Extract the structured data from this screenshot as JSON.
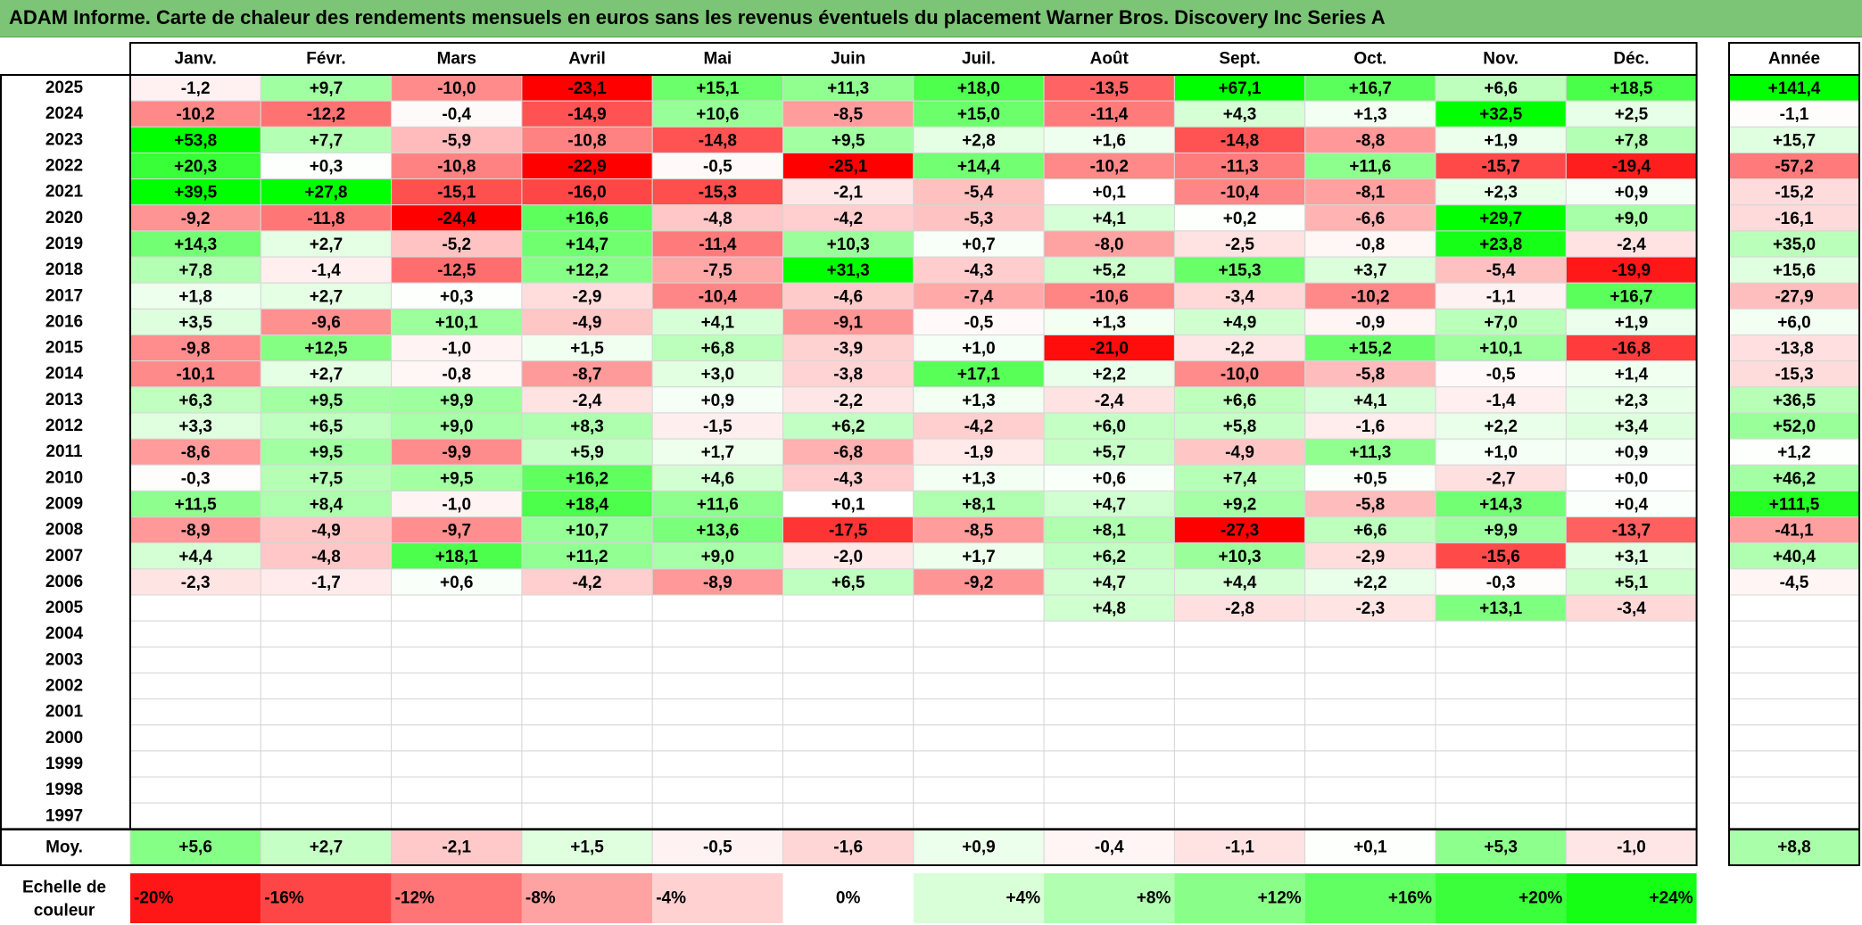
{
  "title": "ADAM Informe. Carte de chaleur des rendements mensuels en euros sans les revenus éventuels du placement Warner Bros. Discovery Inc Series A",
  "chart_data": {
    "type": "heatmap",
    "months": [
      "Janv.",
      "Févr.",
      "Mars",
      "Avril",
      "Mai",
      "Juin",
      "Juil.",
      "Août",
      "Sept.",
      "Oct.",
      "Nov.",
      "Déc."
    ],
    "year_column_label": "Année",
    "rows": [
      {
        "year": "2025",
        "values": [
          "-1,2",
          "+9,7",
          "-10,0",
          "-23,1",
          "+15,1",
          "+11,3",
          "+18,0",
          "-13,5",
          "+67,1",
          "+16,7",
          "+6,6",
          "+18,5"
        ],
        "annual": "+141,4"
      },
      {
        "year": "2024",
        "values": [
          "-10,2",
          "-12,2",
          "-0,4",
          "-14,9",
          "+10,6",
          "-8,5",
          "+15,0",
          "-11,4",
          "+4,3",
          "+1,3",
          "+32,5",
          "+2,5"
        ],
        "annual": "-1,1"
      },
      {
        "year": "2023",
        "values": [
          "+53,8",
          "+7,7",
          "-5,9",
          "-10,8",
          "-14,8",
          "+9,5",
          "+2,8",
          "+1,6",
          "-14,8",
          "-8,8",
          "+1,9",
          "+7,8"
        ],
        "annual": "+15,7"
      },
      {
        "year": "2022",
        "values": [
          "+20,3",
          "+0,3",
          "-10,8",
          "-22,9",
          "-0,5",
          "-25,1",
          "+14,4",
          "-10,2",
          "-11,3",
          "+11,6",
          "-15,7",
          "-19,4"
        ],
        "annual": "-57,2"
      },
      {
        "year": "2021",
        "values": [
          "+39,5",
          "+27,8",
          "-15,1",
          "-16,0",
          "-15,3",
          "-2,1",
          "-5,4",
          "+0,1",
          "-10,4",
          "-8,1",
          "+2,3",
          "+0,9"
        ],
        "annual": "-15,2"
      },
      {
        "year": "2020",
        "values": [
          "-9,2",
          "-11,8",
          "-24,4",
          "+16,6",
          "-4,8",
          "-4,2",
          "-5,3",
          "+4,1",
          "+0,2",
          "-6,6",
          "+29,7",
          "+9,0"
        ],
        "annual": "-16,1"
      },
      {
        "year": "2019",
        "values": [
          "+14,3",
          "+2,7",
          "-5,2",
          "+14,7",
          "-11,4",
          "+10,3",
          "+0,7",
          "-8,0",
          "-2,5",
          "-0,8",
          "+23,8",
          "-2,4"
        ],
        "annual": "+35,0"
      },
      {
        "year": "2018",
        "values": [
          "+7,8",
          "-1,4",
          "-12,5",
          "+12,2",
          "-7,5",
          "+31,3",
          "-4,3",
          "+5,2",
          "+15,3",
          "+3,7",
          "-5,4",
          "-19,9"
        ],
        "annual": "+15,6"
      },
      {
        "year": "2017",
        "values": [
          "+1,8",
          "+2,7",
          "+0,3",
          "-2,9",
          "-10,4",
          "-4,6",
          "-7,4",
          "-10,6",
          "-3,4",
          "-10,2",
          "-1,1",
          "+16,7"
        ],
        "annual": "-27,9"
      },
      {
        "year": "2016",
        "values": [
          "+3,5",
          "-9,6",
          "+10,1",
          "-4,9",
          "+4,1",
          "-9,1",
          "-0,5",
          "+1,3",
          "+4,9",
          "-0,9",
          "+7,0",
          "+1,9"
        ],
        "annual": "+6,0"
      },
      {
        "year": "2015",
        "values": [
          "-9,8",
          "+12,5",
          "-1,0",
          "+1,5",
          "+6,8",
          "-3,9",
          "+1,0",
          "-21,0",
          "-2,2",
          "+15,2",
          "+10,1",
          "-16,8"
        ],
        "annual": "-13,8"
      },
      {
        "year": "2014",
        "values": [
          "-10,1",
          "+2,7",
          "-0,8",
          "-8,7",
          "+3,0",
          "-3,8",
          "+17,1",
          "+2,2",
          "-10,0",
          "-5,8",
          "-0,5",
          "+1,4"
        ],
        "annual": "-15,3"
      },
      {
        "year": "2013",
        "values": [
          "+6,3",
          "+9,5",
          "+9,9",
          "-2,4",
          "+0,9",
          "-2,2",
          "+1,3",
          "-2,4",
          "+6,6",
          "+4,1",
          "-1,4",
          "+2,3"
        ],
        "annual": "+36,5"
      },
      {
        "year": "2012",
        "values": [
          "+3,3",
          "+6,5",
          "+9,0",
          "+8,3",
          "-1,5",
          "+6,2",
          "-4,2",
          "+6,0",
          "+5,8",
          "-1,6",
          "+2,2",
          "+3,4"
        ],
        "annual": "+52,0"
      },
      {
        "year": "2011",
        "values": [
          "-8,6",
          "+9,5",
          "-9,9",
          "+5,9",
          "+1,7",
          "-6,8",
          "-1,9",
          "+5,7",
          "-4,9",
          "+11,3",
          "+1,0",
          "+0,9"
        ],
        "annual": "+1,2"
      },
      {
        "year": "2010",
        "values": [
          "-0,3",
          "+7,5",
          "+9,5",
          "+16,2",
          "+4,6",
          "-4,3",
          "+1,3",
          "+0,6",
          "+7,4",
          "+0,5",
          "-2,7",
          "+0,0"
        ],
        "annual": "+46,2"
      },
      {
        "year": "2009",
        "values": [
          "+11,5",
          "+8,4",
          "-1,0",
          "+18,4",
          "+11,6",
          "+0,1",
          "+8,1",
          "+4,7",
          "+9,2",
          "-5,8",
          "+14,3",
          "+0,4"
        ],
        "annual": "+111,5"
      },
      {
        "year": "2008",
        "values": [
          "-8,9",
          "-4,9",
          "-9,7",
          "+10,7",
          "+13,6",
          "-17,5",
          "-8,5",
          "+8,1",
          "-27,3",
          "+6,6",
          "+9,9",
          "-13,7"
        ],
        "annual": "-41,1"
      },
      {
        "year": "2007",
        "values": [
          "+4,4",
          "-4,8",
          "+18,1",
          "+11,2",
          "+9,0",
          "-2,0",
          "+1,7",
          "+6,2",
          "+10,3",
          "-2,9",
          "-15,6",
          "+3,1"
        ],
        "annual": "+40,4"
      },
      {
        "year": "2006",
        "values": [
          "-2,3",
          "-1,7",
          "+0,6",
          "-4,2",
          "-8,9",
          "+6,5",
          "-9,2",
          "+4,7",
          "+4,4",
          "+2,2",
          "-0,3",
          "+5,1"
        ],
        "annual": "-4,5"
      },
      {
        "year": "2005",
        "values": [
          "",
          "",
          "",
          "",
          "",
          "",
          "",
          "+4,8",
          "-2,8",
          "-2,3",
          "+13,1",
          "-3,4"
        ],
        "annual": ""
      },
      {
        "year": "2004",
        "values": [
          "",
          "",
          "",
          "",
          "",
          "",
          "",
          "",
          "",
          "",
          "",
          ""
        ],
        "annual": ""
      },
      {
        "year": "2003",
        "values": [
          "",
          "",
          "",
          "",
          "",
          "",
          "",
          "",
          "",
          "",
          "",
          ""
        ],
        "annual": ""
      },
      {
        "year": "2002",
        "values": [
          "",
          "",
          "",
          "",
          "",
          "",
          "",
          "",
          "",
          "",
          "",
          ""
        ],
        "annual": ""
      },
      {
        "year": "2001",
        "values": [
          "",
          "",
          "",
          "",
          "",
          "",
          "",
          "",
          "",
          "",
          "",
          ""
        ],
        "annual": ""
      },
      {
        "year": "2000",
        "values": [
          "",
          "",
          "",
          "",
          "",
          "",
          "",
          "",
          "",
          "",
          "",
          ""
        ],
        "annual": ""
      },
      {
        "year": "1999",
        "values": [
          "",
          "",
          "",
          "",
          "",
          "",
          "",
          "",
          "",
          "",
          "",
          ""
        ],
        "annual": ""
      },
      {
        "year": "1998",
        "values": [
          "",
          "",
          "",
          "",
          "",
          "",
          "",
          "",
          "",
          "",
          "",
          ""
        ],
        "annual": ""
      },
      {
        "year": "1997",
        "values": [
          "",
          "",
          "",
          "",
          "",
          "",
          "",
          "",
          "",
          "",
          "",
          ""
        ],
        "annual": ""
      }
    ],
    "average": {
      "label": "Moy.",
      "values": [
        "+5,6",
        "+2,7",
        "-2,1",
        "+1,5",
        "-0,5",
        "-1,6",
        "+0,9",
        "-0,4",
        "-1,1",
        "+0,1",
        "+5,3",
        "-1,0"
      ],
      "annual": "+8,8"
    },
    "scale": {
      "label_line1": "Echelle de",
      "label_line2": "couleur",
      "items": [
        "-20%",
        "-16%",
        "-12%",
        "-8%",
        "-4%",
        "0%",
        "+4%",
        "+8%",
        "+12%",
        "+16%",
        "+20%",
        "+24%"
      ]
    },
    "colors": {
      "negative_max": "#ff0000",
      "neutral": "#ffffff",
      "positive_max": "#00ff00",
      "title_bar": "#7cc576"
    }
  }
}
